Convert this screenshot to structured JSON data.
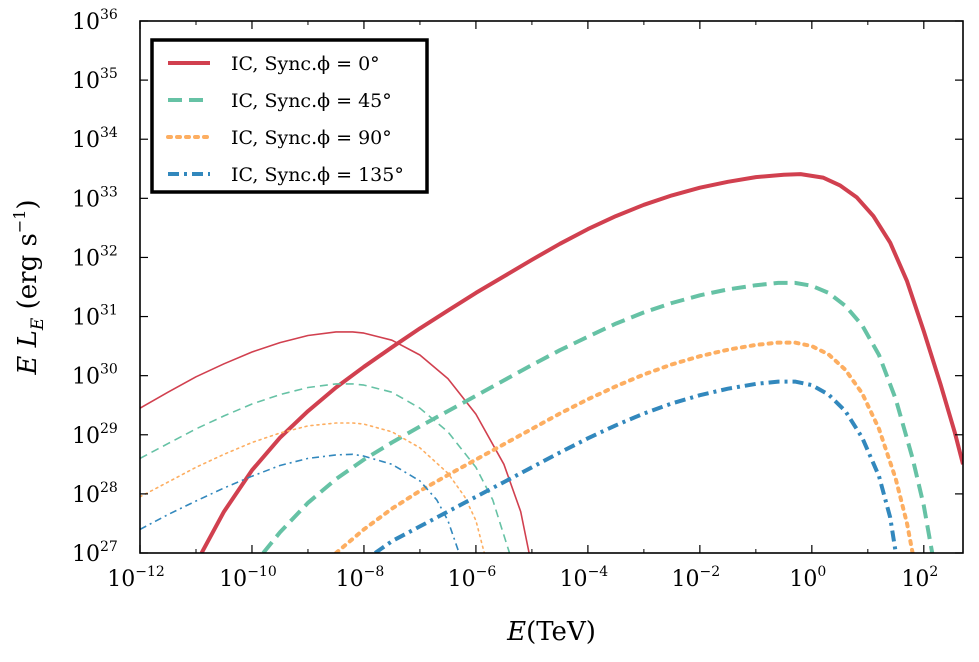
{
  "chart_data": {
    "type": "line",
    "xlabel": "E(TeV)",
    "ylabel": "E L_E (erg s^-1)",
    "xscale": "log",
    "yscale": "log",
    "xlim_exp": [
      -12,
      2.7
    ],
    "ylim_exp": [
      27,
      36
    ],
    "xticks": [
      {
        "exp": -12,
        "label": "10",
        "sup": "−12"
      },
      {
        "exp": -10,
        "label": "10",
        "sup": "−10"
      },
      {
        "exp": -8,
        "label": "10",
        "sup": "−8"
      },
      {
        "exp": -6,
        "label": "10",
        "sup": "−6"
      },
      {
        "exp": -4,
        "label": "10",
        "sup": "−4"
      },
      {
        "exp": -2,
        "label": "10",
        "sup": "−2"
      },
      {
        "exp": 0,
        "label": "10",
        "sup": "0"
      },
      {
        "exp": 2,
        "label": "10",
        "sup": "2"
      }
    ],
    "yticks": [
      {
        "exp": 27,
        "label": "10",
        "sup": "27"
      },
      {
        "exp": 28,
        "label": "10",
        "sup": "28"
      },
      {
        "exp": 29,
        "label": "10",
        "sup": "29"
      },
      {
        "exp": 30,
        "label": "10",
        "sup": "30"
      },
      {
        "exp": 31,
        "label": "10",
        "sup": "31"
      },
      {
        "exp": 32,
        "label": "10",
        "sup": "32"
      },
      {
        "exp": 33,
        "label": "10",
        "sup": "33"
      },
      {
        "exp": 34,
        "label": "10",
        "sup": "34"
      },
      {
        "exp": 35,
        "label": "10",
        "sup": "35"
      },
      {
        "exp": 36,
        "label": "10",
        "sup": "36"
      }
    ],
    "legend_position": "top-left",
    "legend": [
      {
        "label": "IC, Sync.ϕ = 0°",
        "color": "#d1404f",
        "style": "solid"
      },
      {
        "label": "IC, Sync.ϕ = 45°",
        "color": "#66c2a5",
        "style": "dashed"
      },
      {
        "label": "IC, Sync.ϕ = 90°",
        "color": "#fdae61",
        "style": "dotted"
      },
      {
        "label": "IC, Sync.ϕ = 135°",
        "color": "#3288bd",
        "style": "dashdot"
      }
    ],
    "series": [
      {
        "name": "IC, Sync.ϕ = 0°",
        "component": "IC",
        "color": "#d1404f",
        "style": "solid",
        "points": [
          [
            -10.9,
            27
          ],
          [
            -10.5,
            27.7
          ],
          [
            -10,
            28.4
          ],
          [
            -9.5,
            28.95
          ],
          [
            -9,
            29.4
          ],
          [
            -8.5,
            29.8
          ],
          [
            -8,
            30.15
          ],
          [
            -7.5,
            30.48
          ],
          [
            -7,
            30.8
          ],
          [
            -6.5,
            31.1
          ],
          [
            -6,
            31.4
          ],
          [
            -5.5,
            31.68
          ],
          [
            -5,
            31.96
          ],
          [
            -4.5,
            32.23
          ],
          [
            -4,
            32.48
          ],
          [
            -3.5,
            32.7
          ],
          [
            -3,
            32.89
          ],
          [
            -2.5,
            33.05
          ],
          [
            -2,
            33.18
          ],
          [
            -1.5,
            33.28
          ],
          [
            -1,
            33.36
          ],
          [
            -0.5,
            33.4
          ],
          [
            -0.2,
            33.41
          ],
          [
            0.2,
            33.35
          ],
          [
            0.5,
            33.22
          ],
          [
            0.8,
            33.02
          ],
          [
            1.1,
            32.7
          ],
          [
            1.4,
            32.25
          ],
          [
            1.7,
            31.6
          ],
          [
            2,
            30.75
          ],
          [
            2.3,
            29.85
          ],
          [
            2.55,
            29.05
          ],
          [
            2.7,
            28.5
          ]
        ]
      },
      {
        "name": "IC, Sync.ϕ = 0°",
        "component": "Sync",
        "color": "#d1404f",
        "style": "solid",
        "points": [
          [
            -12,
            29.45
          ],
          [
            -11.5,
            29.72
          ],
          [
            -11,
            29.98
          ],
          [
            -10.5,
            30.2
          ],
          [
            -10,
            30.4
          ],
          [
            -9.5,
            30.56
          ],
          [
            -9,
            30.68
          ],
          [
            -8.5,
            30.74
          ],
          [
            -8.2,
            30.74
          ],
          [
            -8,
            30.72
          ],
          [
            -7.5,
            30.6
          ],
          [
            -7,
            30.35
          ],
          [
            -6.5,
            29.95
          ],
          [
            -6,
            29.35
          ],
          [
            -5.5,
            28.5
          ],
          [
            -5.2,
            27.7
          ],
          [
            -5.05,
            27
          ]
        ]
      },
      {
        "name": "IC, Sync.ϕ = 45°",
        "component": "IC",
        "color": "#66c2a5",
        "style": "dashed",
        "points": [
          [
            -9.8,
            27
          ],
          [
            -9.5,
            27.35
          ],
          [
            -9,
            27.85
          ],
          [
            -8.5,
            28.25
          ],
          [
            -8,
            28.58
          ],
          [
            -7.5,
            28.87
          ],
          [
            -7,
            29.14
          ],
          [
            -6.5,
            29.4
          ],
          [
            -6,
            29.66
          ],
          [
            -5.5,
            29.92
          ],
          [
            -5,
            30.18
          ],
          [
            -4.5,
            30.43
          ],
          [
            -4,
            30.66
          ],
          [
            -3.5,
            30.88
          ],
          [
            -3,
            31.07
          ],
          [
            -2.5,
            31.23
          ],
          [
            -2,
            31.36
          ],
          [
            -1.5,
            31.46
          ],
          [
            -1,
            31.53
          ],
          [
            -0.6,
            31.57
          ],
          [
            -0.3,
            31.57
          ],
          [
            0,
            31.52
          ],
          [
            0.3,
            31.4
          ],
          [
            0.6,
            31.18
          ],
          [
            0.9,
            30.85
          ],
          [
            1.2,
            30.35
          ],
          [
            1.5,
            29.6
          ],
          [
            1.8,
            28.6
          ],
          [
            2,
            27.8
          ],
          [
            2.15,
            27
          ]
        ]
      },
      {
        "name": "IC, Sync.ϕ = 45°",
        "component": "Sync",
        "color": "#66c2a5",
        "style": "dashed",
        "points": [
          [
            -12,
            28.6
          ],
          [
            -11.5,
            28.85
          ],
          [
            -11,
            29.1
          ],
          [
            -10.5,
            29.32
          ],
          [
            -10,
            29.52
          ],
          [
            -9.5,
            29.68
          ],
          [
            -9,
            29.8
          ],
          [
            -8.5,
            29.86
          ],
          [
            -8.2,
            29.86
          ],
          [
            -8,
            29.84
          ],
          [
            -7.5,
            29.72
          ],
          [
            -7,
            29.45
          ],
          [
            -6.5,
            29.05
          ],
          [
            -6,
            28.45
          ],
          [
            -5.7,
            27.9
          ],
          [
            -5.5,
            27.3
          ],
          [
            -5.4,
            27
          ]
        ]
      },
      {
        "name": "IC, Sync.ϕ = 90°",
        "component": "IC",
        "color": "#fdae61",
        "style": "dotted",
        "points": [
          [
            -8.5,
            27
          ],
          [
            -8,
            27.4
          ],
          [
            -7.5,
            27.75
          ],
          [
            -7,
            28.05
          ],
          [
            -6.5,
            28.32
          ],
          [
            -6,
            28.58
          ],
          [
            -5.5,
            28.84
          ],
          [
            -5,
            29.1
          ],
          [
            -4.5,
            29.36
          ],
          [
            -4,
            29.6
          ],
          [
            -3.5,
            29.82
          ],
          [
            -3,
            30.02
          ],
          [
            -2.5,
            30.19
          ],
          [
            -2,
            30.33
          ],
          [
            -1.5,
            30.44
          ],
          [
            -1,
            30.52
          ],
          [
            -0.6,
            30.56
          ],
          [
            -0.3,
            30.56
          ],
          [
            0,
            30.5
          ],
          [
            0.3,
            30.36
          ],
          [
            0.6,
            30.1
          ],
          [
            0.9,
            29.7
          ],
          [
            1.2,
            29.1
          ],
          [
            1.5,
            28.25
          ],
          [
            1.7,
            27.5
          ],
          [
            1.8,
            27
          ]
        ]
      },
      {
        "name": "IC, Sync.ϕ = 90°",
        "component": "Sync",
        "color": "#fdae61",
        "style": "dotted",
        "points": [
          [
            -12,
            27.95
          ],
          [
            -11.5,
            28.2
          ],
          [
            -11,
            28.45
          ],
          [
            -10.5,
            28.67
          ],
          [
            -10,
            28.87
          ],
          [
            -9.5,
            29.03
          ],
          [
            -9,
            29.15
          ],
          [
            -8.5,
            29.2
          ],
          [
            -8.2,
            29.2
          ],
          [
            -8,
            29.18
          ],
          [
            -7.5,
            29.05
          ],
          [
            -7,
            28.78
          ],
          [
            -6.5,
            28.35
          ],
          [
            -6.2,
            27.95
          ],
          [
            -6,
            27.55
          ],
          [
            -5.85,
            27
          ]
        ]
      },
      {
        "name": "IC, Sync.ϕ = 135°",
        "component": "IC",
        "color": "#3288bd",
        "style": "dashdot",
        "points": [
          [
            -7.8,
            27
          ],
          [
            -7.5,
            27.2
          ],
          [
            -7,
            27.45
          ],
          [
            -6.5,
            27.7
          ],
          [
            -6,
            27.95
          ],
          [
            -5.5,
            28.2
          ],
          [
            -5,
            28.45
          ],
          [
            -4.5,
            28.7
          ],
          [
            -4,
            28.94
          ],
          [
            -3.5,
            29.16
          ],
          [
            -3,
            29.36
          ],
          [
            -2.5,
            29.53
          ],
          [
            -2,
            29.67
          ],
          [
            -1.5,
            29.78
          ],
          [
            -1,
            29.86
          ],
          [
            -0.6,
            29.9
          ],
          [
            -0.3,
            29.9
          ],
          [
            0,
            29.84
          ],
          [
            0.3,
            29.68
          ],
          [
            0.6,
            29.4
          ],
          [
            0.9,
            28.95
          ],
          [
            1.2,
            28.3
          ],
          [
            1.4,
            27.6
          ],
          [
            1.5,
            27
          ]
        ]
      },
      {
        "name": "IC, Sync.ϕ = 135°",
        "component": "Sync",
        "color": "#3288bd",
        "style": "dashdot",
        "points": [
          [
            -12,
            27.4
          ],
          [
            -11.5,
            27.65
          ],
          [
            -11,
            27.88
          ],
          [
            -10.5,
            28.1
          ],
          [
            -10,
            28.3
          ],
          [
            -9.5,
            28.48
          ],
          [
            -9,
            28.6
          ],
          [
            -8.5,
            28.66
          ],
          [
            -8.2,
            28.67
          ],
          [
            -8,
            28.64
          ],
          [
            -7.5,
            28.5
          ],
          [
            -7,
            28.22
          ],
          [
            -6.7,
            27.9
          ],
          [
            -6.5,
            27.55
          ],
          [
            -6.3,
            27
          ]
        ]
      }
    ]
  }
}
